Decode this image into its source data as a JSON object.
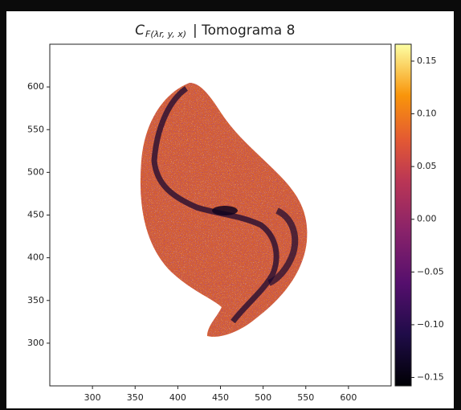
{
  "chart_data": {
    "type": "heatmap",
    "title": {
      "symbol": "C",
      "subscript": "F(λr, y, x)",
      "text": "| Tomograma 8"
    },
    "xlim": [
      250,
      650
    ],
    "ylim": [
      250,
      650
    ],
    "xticks": [
      300,
      350,
      400,
      450,
      500,
      550,
      600
    ],
    "yticks": [
      300,
      350,
      400,
      450,
      500,
      550,
      600
    ],
    "colormap": "inferno",
    "colorbar": {
      "lim": [
        -0.158,
        0.166
      ],
      "ticks": [
        {
          "value": 0.15,
          "label": "0.15"
        },
        {
          "value": 0.1,
          "label": "0.10"
        },
        {
          "value": 0.05,
          "label": "0.05"
        },
        {
          "value": 0,
          "label": "0.00"
        },
        {
          "value": -0.05,
          "label": "−0.05"
        },
        {
          "value": -0.1,
          "label": "−0.10"
        },
        {
          "value": -0.15,
          "label": "−0.15"
        }
      ]
    }
  }
}
